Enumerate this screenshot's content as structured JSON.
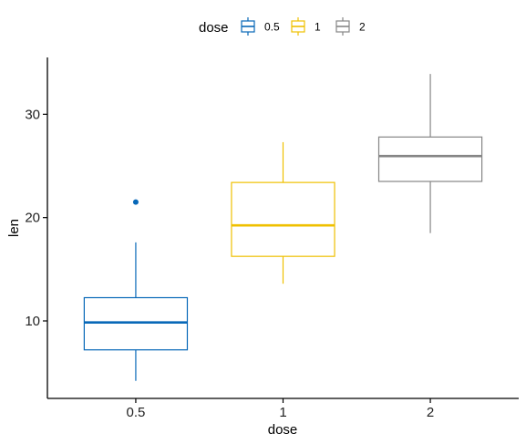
{
  "chart_data": {
    "type": "box",
    "xlabel": "dose",
    "ylabel": "len",
    "categories": [
      "0.5",
      "1",
      "2"
    ],
    "ylim": [
      2.5,
      35.5
    ],
    "yticks": [
      10,
      20,
      30
    ],
    "grid": false,
    "legend": {
      "title": "dose",
      "position": "top",
      "entries": [
        "0.5",
        "1",
        "2"
      ]
    },
    "colors": [
      "#0868b8",
      "#efc000",
      "#868686"
    ],
    "series": [
      {
        "category": "0.5",
        "whisker_low": 4.2,
        "q1": 7.2,
        "median": 9.85,
        "q3": 12.25,
        "whisker_high": 17.6,
        "outliers": [
          21.5
        ]
      },
      {
        "category": "1",
        "whisker_low": 13.6,
        "q1": 16.25,
        "median": 19.25,
        "q3": 23.4,
        "whisker_high": 27.3,
        "outliers": []
      },
      {
        "category": "2",
        "whisker_low": 18.5,
        "q1": 23.5,
        "median": 25.95,
        "q3": 27.8,
        "whisker_high": 33.9,
        "outliers": []
      }
    ]
  }
}
